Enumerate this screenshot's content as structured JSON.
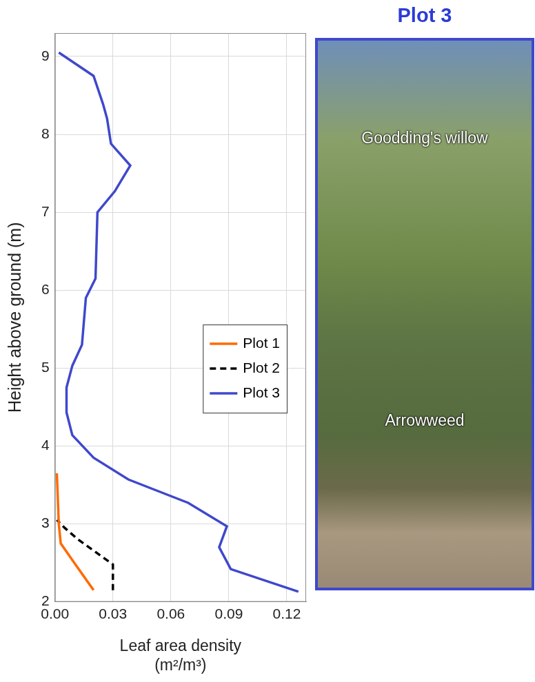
{
  "chart_data": {
    "type": "line",
    "x_label": "Leaf area density (m²/m³)",
    "y_label": "Height above ground (m)",
    "xlim": [
      0,
      0.13
    ],
    "xticks": [
      {
        "value": 0,
        "label": "0.00"
      },
      0.03,
      0.06,
      0.09,
      0.12
    ],
    "ylim": [
      2,
      9.3
    ],
    "yticks": [
      2,
      3,
      4,
      5,
      6,
      7,
      8,
      9
    ],
    "grid": true,
    "legend": "right",
    "series": [
      {
        "name": "Plot 1",
        "color": "#ff6a00",
        "line_style": "solid",
        "x": [
          0.02,
          0.01,
          0.003,
          0.002,
          0.001
        ],
        "values": [
          2.15,
          2.5,
          2.75,
          3.0,
          3.65
        ]
      },
      {
        "name": "Plot 2",
        "color": "#000000",
        "line_style": "dashed",
        "x": [
          0.03,
          0.03,
          0.012,
          0.005,
          0.001
        ],
        "values": [
          2.15,
          2.48,
          2.8,
          2.95,
          3.05
        ]
      },
      {
        "name": "Plot 3",
        "color": "#3f48cc",
        "line_style": "solid",
        "x": [
          0.126,
          0.091,
          0.085,
          0.089,
          0.069,
          0.038,
          0.02,
          0.009,
          0.006,
          0.006,
          0.009,
          0.014,
          0.016,
          0.021,
          0.022,
          0.031,
          0.039,
          0.029,
          0.027,
          0.025,
          0.02,
          0.002
        ],
        "values": [
          2.13,
          2.42,
          2.7,
          2.97,
          3.27,
          3.57,
          3.85,
          4.14,
          4.43,
          4.75,
          5.03,
          5.3,
          5.9,
          6.15,
          7.0,
          7.27,
          7.6,
          7.88,
          8.2,
          8.38,
          8.75,
          9.05
        ]
      }
    ]
  },
  "photo_panel": {
    "title": "Plot 3",
    "labels": [
      "Goodding's willow",
      "Arrowweed"
    ]
  }
}
